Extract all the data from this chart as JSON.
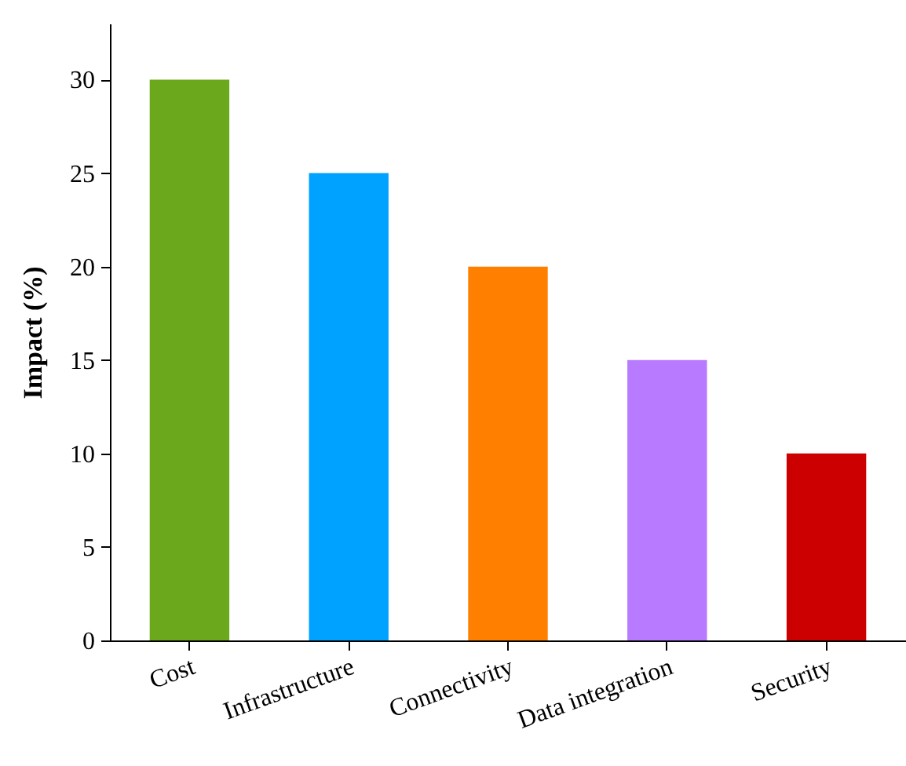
{
  "chart_data": {
    "type": "bar",
    "categories": [
      "Cost",
      "Infrastructure",
      "Connectivity",
      "Data integration",
      "Security"
    ],
    "values": [
      30,
      25,
      20,
      15,
      10
    ],
    "colors": [
      "#6ca81c",
      "#00a2ff",
      "#ff8000",
      "#b87aff",
      "#cc0000"
    ],
    "ylabel": "Impact (%)",
    "ylim": [
      0,
      33
    ],
    "yticks": [
      0,
      5,
      10,
      15,
      20,
      25,
      30
    ],
    "grid": false
  }
}
